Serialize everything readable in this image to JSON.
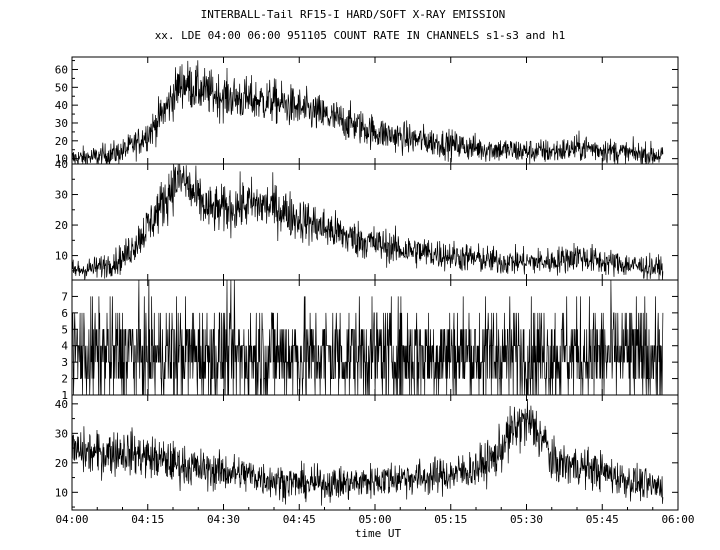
{
  "title": "INTERBALL-Tail RF15-I HARD/SOFT X-RAY EMISSION",
  "subtitle": "xx. LDE 04:00 06:00 951105  COUNT RATE IN CHANNELS s1-s3 and h1",
  "xlabel": "time UT",
  "colors": {
    "line": "#000000",
    "background": "#ffffff"
  },
  "chart_data": {
    "type": "line",
    "x_unit": "time UT (HH:MM)",
    "xlim": [
      "04:00",
      "06:00"
    ],
    "x_ticks": [
      "04:00",
      "04:15",
      "04:30",
      "04:45",
      "05:00",
      "05:15",
      "05:30",
      "05:45",
      "06:00"
    ],
    "grid": false,
    "legend": "none",
    "panels": [
      {
        "ylim": [
          7,
          67
        ],
        "y_ticks": [
          10,
          20,
          30,
          40,
          50,
          60
        ],
        "noise": 3,
        "series": {
          "x": [
            "04:00",
            "04:05",
            "04:10",
            "04:13",
            "04:16",
            "04:19",
            "04:21",
            "04:22",
            "04:24",
            "04:27",
            "04:30",
            "04:35",
            "04:40",
            "04:45",
            "04:50",
            "04:55",
            "05:00",
            "05:05",
            "05:10",
            "05:15",
            "05:20",
            "05:25",
            "05:30",
            "05:35",
            "05:38",
            "05:40",
            "05:42",
            "05:45",
            "05:50",
            "05:55",
            "05:57"
          ],
          "y": [
            10,
            11,
            14,
            19,
            27,
            40,
            50,
            53,
            50,
            47,
            45,
            43,
            42,
            38,
            34,
            30,
            25,
            22,
            20,
            18,
            16,
            15,
            14,
            14,
            15,
            16,
            16,
            15,
            13,
            12,
            12
          ]
        }
      },
      {
        "ylim": [
          2,
          40
        ],
        "y_ticks": [
          10,
          20,
          30,
          40
        ],
        "noise": 2.5,
        "series": {
          "x": [
            "04:00",
            "04:05",
            "04:10",
            "04:13",
            "04:16",
            "04:19",
            "04:20",
            "04:22",
            "04:24",
            "04:27",
            "04:30",
            "04:35",
            "04:40",
            "04:45",
            "04:50",
            "04:55",
            "05:00",
            "05:05",
            "05:10",
            "05:15",
            "05:20",
            "05:25",
            "05:30",
            "05:35",
            "05:38",
            "05:40",
            "05:42",
            "05:45",
            "05:50",
            "05:55",
            "05:57"
          ],
          "y": [
            5,
            6,
            9,
            15,
            22,
            30,
            34,
            35,
            30,
            25,
            25,
            27,
            26,
            22,
            19,
            16,
            14,
            12,
            11,
            10,
            9,
            8,
            8,
            8,
            9,
            10,
            9,
            8,
            7,
            6,
            6
          ]
        }
      },
      {
        "ylim": [
          1,
          8
        ],
        "y_ticks": [
          1,
          2,
          3,
          4,
          5,
          6,
          7
        ],
        "noise": 0,
        "discrete": true,
        "mean": 3.5,
        "series": {
          "x": [
            "04:00",
            "05:57"
          ],
          "y": [
            3.5,
            3.5
          ]
        }
      },
      {
        "ylim": [
          4,
          43
        ],
        "y_ticks": [
          10,
          20,
          30,
          40
        ],
        "noise": 2.5,
        "series": {
          "x": [
            "04:00",
            "04:05",
            "04:10",
            "04:15",
            "04:20",
            "04:25",
            "04:30",
            "04:35",
            "04:40",
            "04:45",
            "04:50",
            "04:55",
            "05:00",
            "05:05",
            "05:10",
            "05:15",
            "05:20",
            "05:24",
            "05:26",
            "05:28",
            "05:30",
            "05:32",
            "05:34",
            "05:35",
            "05:40",
            "05:45",
            "05:50",
            "05:55",
            "05:57"
          ],
          "y": [
            24,
            23,
            24,
            22,
            20,
            18,
            17,
            16,
            14,
            13,
            13,
            13,
            14,
            15,
            15,
            16,
            18,
            22,
            28,
            32,
            34,
            31,
            26,
            20,
            19,
            17,
            14,
            12,
            12
          ]
        }
      }
    ]
  }
}
